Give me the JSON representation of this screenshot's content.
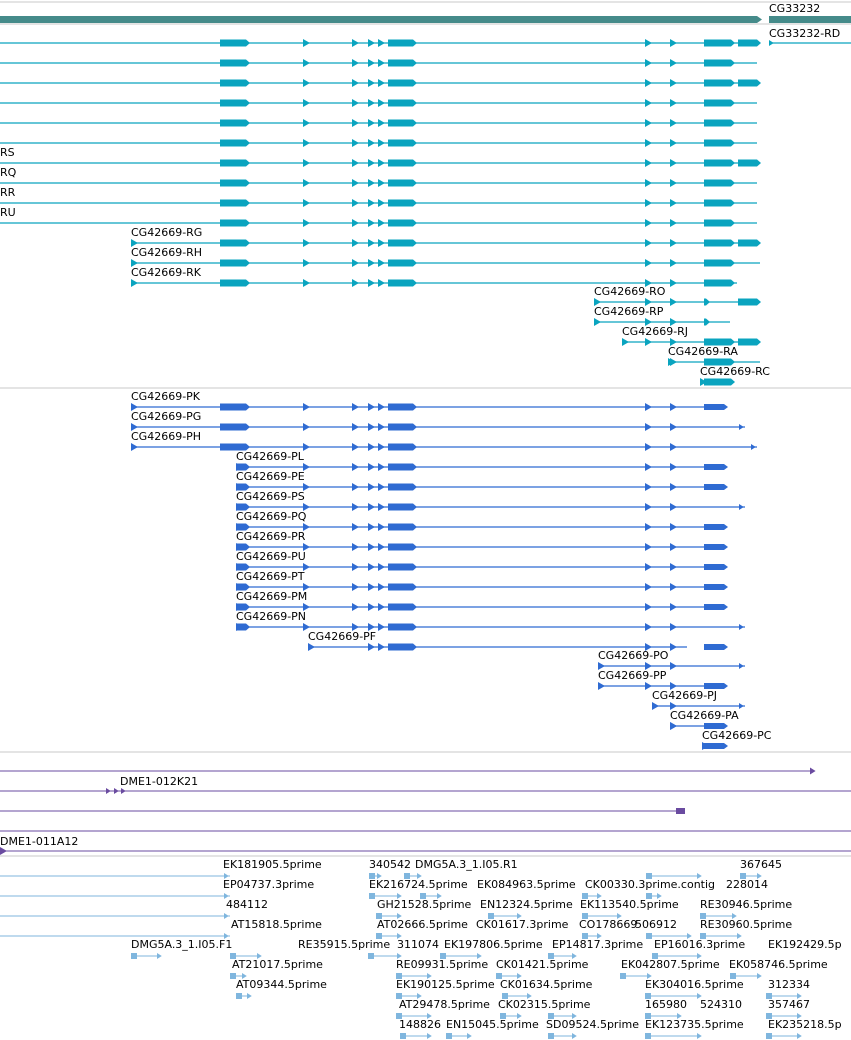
{
  "colors": {
    "gene": "#458B8A",
    "transcript": "#0AA4BF",
    "protein": "#2F6BD2",
    "bac": "#6A4BA0",
    "est": "#7FB6DE",
    "divider": "#c8c8c8"
  },
  "icons": {
    "strand": "right-arrowhead-icon"
  },
  "gene_track": {
    "gene_label": "CG33232",
    "transcript_label": "CG33232-RD"
  },
  "transcript_track": {
    "partial_labels": [
      "RS",
      "RQ",
      "RR",
      "RU"
    ],
    "labels": [
      "CG42669-RG",
      "CG42669-RH",
      "CG42669-RK",
      "CG42669-RO",
      "CG42669-RP",
      "CG42669-RJ",
      "CG42669-RA",
      "CG42669-RC"
    ]
  },
  "protein_track": {
    "labels": [
      "CG42669-PK",
      "CG42669-PG",
      "CG42669-PH",
      "CG42669-PL",
      "CG42669-PE",
      "CG42669-PS",
      "CG42669-PQ",
      "CG42669-PR",
      "CG42669-PU",
      "CG42669-PT",
      "CG42669-PM",
      "CG42669-PN",
      "CG42669-PF",
      "CG42669-PO",
      "CG42669-PP",
      "CG42669-PJ",
      "CG42669-PA",
      "CG42669-PC"
    ]
  },
  "bac_track": {
    "labels": [
      "DME1-012K21",
      "DME1-011A12"
    ]
  },
  "est_track": {
    "labels": [
      "EK181905.5prime",
      "340542",
      "DMG5A.3_1.I05.R1",
      "367645",
      "EP04737.3prime",
      "EK216724.5prime",
      "EK084963.5prime",
      "CK00330.3prime.contig",
      "228014",
      "484112",
      "GH21528.5prime",
      "EN12324.5prime",
      "EK113540.5prime",
      "RE30946.5prime",
      "AT15818.5prime",
      "AT02666.5prime",
      "CK01617.3prime",
      "CO178669",
      "506912",
      "RE30960.5prime",
      "DMG5A.3_1.I05.F1",
      "RE35915.5prime",
      "311074",
      "EK197806.5prime",
      "EP14817.3prime",
      "EP16016.3prime",
      "EK192429.5p",
      "AT21017.5prime",
      "RE09931.5prime",
      "CK01421.5prime",
      "EK042807.5prime",
      "EK058746.5prime",
      "AT09344.5prime",
      "EK190125.5prime",
      "CK01634.5prime",
      "EK304016.5prime",
      "312334",
      "AT29478.5prime",
      "CK02315.5prime",
      "165980",
      "524310",
      "357467",
      "148826",
      "EN15045.5prime",
      "SD09524.5prime",
      "EK123735.5prime",
      "EK235218.5p"
    ]
  }
}
